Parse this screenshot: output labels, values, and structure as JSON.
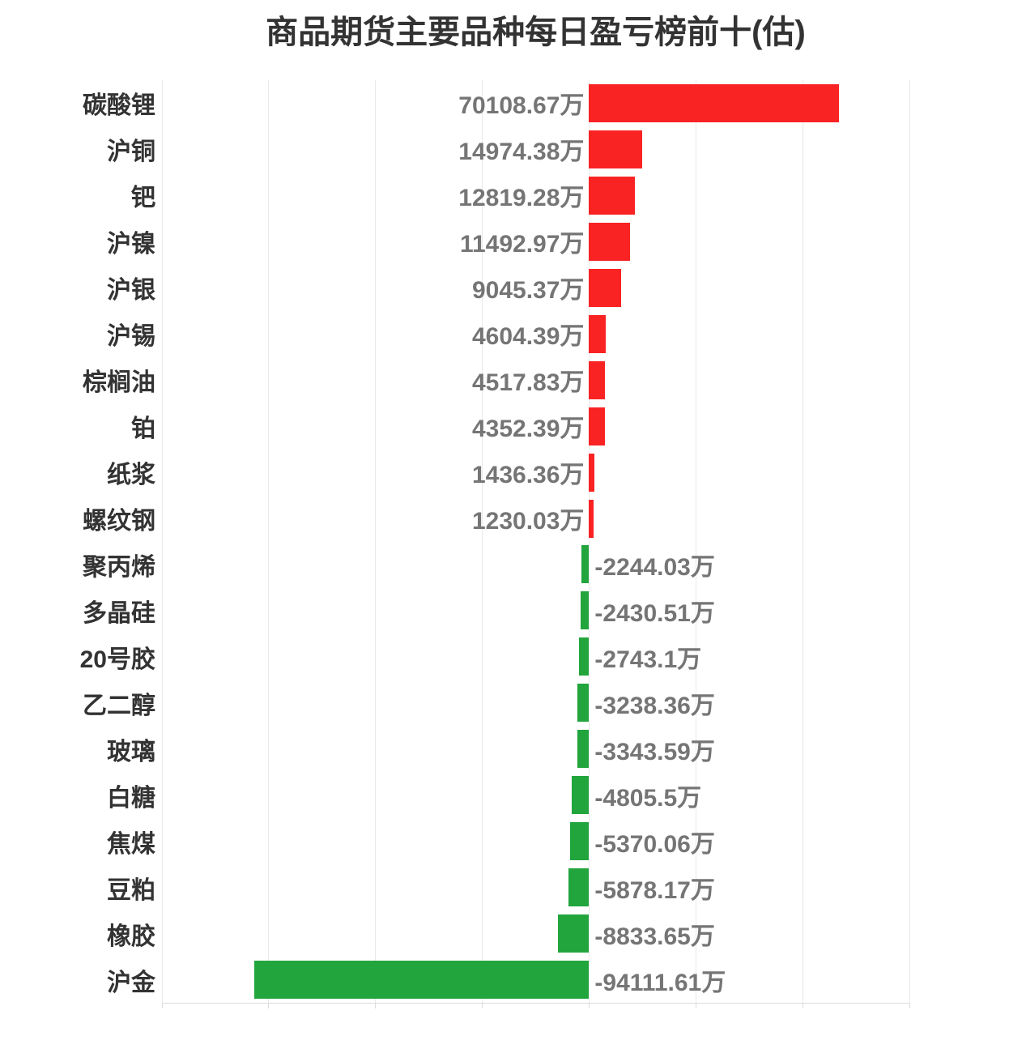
{
  "chart_data": {
    "type": "bar",
    "orientation": "horizontal",
    "title": "商品期货主要品种每日盈亏榜前十(估)",
    "unit": "万",
    "categories": [
      "碳酸锂",
      "沪铜",
      "钯",
      "沪镍",
      "沪银",
      "沪锡",
      "棕榈油",
      "铂",
      "纸浆",
      "螺纹钢",
      "聚丙烯",
      "多晶硅",
      "20号胶",
      "乙二醇",
      "玻璃",
      "白糖",
      "焦煤",
      "豆粕",
      "橡胶",
      "沪金"
    ],
    "values": [
      70108.67,
      14974.38,
      12819.28,
      11492.97,
      9045.37,
      4604.39,
      4517.83,
      4352.39,
      1436.36,
      1230.03,
      -2244.03,
      -2430.51,
      -2743.1,
      -3238.36,
      -3343.59,
      -4805.5,
      -5370.06,
      -5878.17,
      -8833.65,
      -94111.61
    ],
    "value_labels": [
      "70108.67万",
      "14974.38万",
      "12819.28万",
      "11492.97万",
      "9045.37万",
      "4604.39万",
      "4517.83万",
      "4352.39万",
      "1436.36万",
      "1230.03万",
      "-2244.03万",
      "-2430.51万",
      "-2743.1万",
      "-3238.36万",
      "-3343.59万",
      "-4805.5万",
      "-5370.06万",
      "-5878.17万",
      "-8833.65万",
      "-94111.61万"
    ],
    "xlim": [
      -120000,
      90000
    ],
    "grid_step": 30000,
    "xlabel": "",
    "ylabel": "",
    "grid": true,
    "legend_position": "none",
    "x_tick_labels_visible": false,
    "colors": {
      "positive": "#f92323",
      "negative": "#22a53c",
      "title": "#333333",
      "category_label": "#333333",
      "value_label": "#757575",
      "gridline": "#e9e9e9",
      "axis_line": "#dcdcdc",
      "background": "#ffffff"
    }
  }
}
